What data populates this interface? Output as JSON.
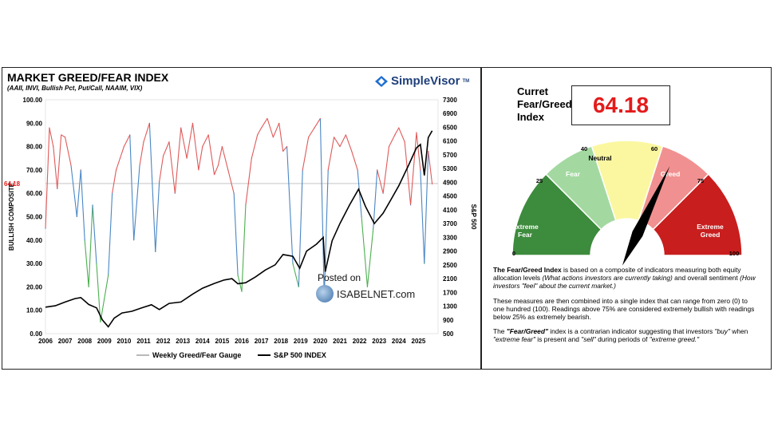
{
  "left": {
    "title": "MARKET GREED/FEAR INDEX",
    "subtitle": "(AAII, INVI, Bullish Pct, Put/Call, NAAIM, VIX)",
    "brand": "SimpleVisor",
    "brand_tm": "TM",
    "watermark_top": "Posted on",
    "watermark_bottom": "ISABELNET.com",
    "legend_gauge": "Weekly Greed/Fear Gauge",
    "legend_sp": "S&P 500 INDEX"
  },
  "right": {
    "current_label": [
      "Curret",
      "Fear/Greed",
      "Index"
    ],
    "current_value": "64.18",
    "desc_p1_bold": "The Fear/Greed Index",
    "desc_p1_rest": " is based on a composite of indicators measuring both equity allocation levels ",
    "desc_p1_italic1": "(What actions investors are currently taking)",
    "desc_p1_mid": " and overall sentiment ",
    "desc_p1_italic2": "(How investors \"feel\" about the current market.)",
    "desc_p2": "These measures are then combined into a single index that can range from zero (0) to one hundred (100). Readings above 75% are considered extremely bullish with readings below 25% as extremely bearish.",
    "desc_p3_a": "The ",
    "desc_p3_b": "\"Fear/Greed\"",
    "desc_p3_c": " index is a contrarian indicator suggesting that investors ",
    "desc_p3_d": "\"buy\"",
    "desc_p3_e": " when ",
    "desc_p3_f": "\"extreme fear\"",
    "desc_p3_g": " is present and ",
    "desc_p3_h": "\"sell\"",
    "desc_p3_i": " during periods of ",
    "desc_p3_j": "\"extreme greed.\""
  },
  "colors": {
    "greed": "#e05a5a",
    "neutral_line": "#4a86c4",
    "fear": "#4caf50",
    "sp500": "#000000",
    "current_value": "#e31b1b"
  },
  "chart_data": [
    {
      "type": "line",
      "title": "MARKET GREED/FEAR INDEX",
      "ylabel": "BULLISH COMPOSITE",
      "y2label": "S&P 500",
      "ylim": [
        0,
        100
      ],
      "y2lim": [
        500,
        7300
      ],
      "yticks": [
        "0.00",
        "10.00",
        "20.00",
        "30.00",
        "40.00",
        "50.00",
        "60.00",
        "70.00",
        "80.00",
        "90.00",
        "100.00"
      ],
      "y2ticks": [
        "500",
        "900",
        "1300",
        "1700",
        "2100",
        "2500",
        "2900",
        "3300",
        "3700",
        "4100",
        "4500",
        "4900",
        "5300",
        "5700",
        "6100",
        "6500",
        "6900",
        "7300"
      ],
      "xticks": [
        "2006",
        "2007",
        "2008",
        "2009",
        "2010",
        "2011",
        "2012",
        "2013",
        "2014",
        "2015",
        "2016",
        "2017",
        "2018",
        "2019",
        "2020",
        "2021",
        "2022",
        "2023",
        "2024",
        "2025"
      ],
      "current_marker": {
        "label": "64.18",
        "value": 64.18
      },
      "series": [
        {
          "name": "Weekly Greed/Fear Gauge",
          "x": [
            2006.0,
            2006.2,
            2006.4,
            2006.6,
            2006.8,
            2007.0,
            2007.3,
            2007.6,
            2007.8,
            2008.0,
            2008.2,
            2008.4,
            2008.6,
            2008.8,
            2009.0,
            2009.2,
            2009.4,
            2009.6,
            2009.8,
            2010.0,
            2010.3,
            2010.5,
            2010.8,
            2011.0,
            2011.3,
            2011.6,
            2011.8,
            2012.0,
            2012.3,
            2012.6,
            2012.9,
            2013.2,
            2013.5,
            2013.8,
            2014.0,
            2014.3,
            2014.6,
            2014.8,
            2015.0,
            2015.3,
            2015.6,
            2015.8,
            2016.0,
            2016.2,
            2016.5,
            2016.8,
            2017.0,
            2017.3,
            2017.6,
            2017.9,
            2018.1,
            2018.3,
            2018.6,
            2018.9,
            2019.1,
            2019.4,
            2019.7,
            2020.0,
            2020.2,
            2020.4,
            2020.7,
            2021.0,
            2021.3,
            2021.6,
            2021.9,
            2022.1,
            2022.4,
            2022.7,
            2022.9,
            2023.2,
            2023.5,
            2023.8,
            2024.0,
            2024.3,
            2024.6,
            2024.9,
            2025.1,
            2025.3,
            2025.5,
            2025.7
          ],
          "values": [
            45,
            88,
            80,
            62,
            85,
            84,
            72,
            50,
            70,
            40,
            20,
            55,
            30,
            5,
            15,
            25,
            60,
            70,
            75,
            80,
            85,
            40,
            72,
            82,
            90,
            35,
            65,
            76,
            82,
            60,
            88,
            75,
            90,
            70,
            80,
            85,
            68,
            72,
            80,
            70,
            60,
            25,
            18,
            55,
            75,
            85,
            88,
            92,
            84,
            90,
            78,
            80,
            30,
            20,
            70,
            84,
            88,
            92,
            15,
            70,
            84,
            80,
            85,
            78,
            70,
            50,
            20,
            45,
            70,
            60,
            80,
            85,
            88,
            82,
            55,
            86,
            70,
            30,
            78,
            64
          ]
        },
        {
          "name": "S&P 500 INDEX",
          "x": [
            2006.0,
            2006.5,
            2007.0,
            2007.5,
            2007.8,
            2008.2,
            2008.6,
            2008.9,
            2009.2,
            2009.5,
            2009.9,
            2010.4,
            2010.9,
            2011.4,
            2011.8,
            2012.3,
            2012.9,
            2013.5,
            2014.0,
            2014.6,
            2015.1,
            2015.5,
            2015.8,
            2016.2,
            2016.7,
            2017.2,
            2017.7,
            2018.1,
            2018.6,
            2018.95,
            2019.3,
            2019.8,
            2020.15,
            2020.25,
            2020.6,
            2021.0,
            2021.5,
            2021.95,
            2022.3,
            2022.75,
            2023.2,
            2023.6,
            2024.0,
            2024.5,
            2024.9,
            2025.1,
            2025.3,
            2025.5,
            2025.7
          ],
          "values": [
            1270,
            1310,
            1420,
            1520,
            1550,
            1350,
            1250,
            900,
            700,
            950,
            1100,
            1150,
            1250,
            1340,
            1200,
            1380,
            1420,
            1650,
            1820,
            1960,
            2060,
            2100,
            1950,
            1980,
            2150,
            2350,
            2500,
            2800,
            2750,
            2400,
            2900,
            3100,
            3300,
            2300,
            3200,
            3700,
            4250,
            4700,
            4200,
            3700,
            4000,
            4400,
            4800,
            5400,
            5900,
            6000,
            5100,
            6200,
            6400
          ]
        }
      ]
    },
    {
      "type": "gauge",
      "title": "Curret Fear/Greed Index",
      "range": [
        0,
        100
      ],
      "value": 64.18,
      "bands": [
        {
          "label": "Extreme Fear",
          "from": 0,
          "to": 25,
          "color": "#3d8b3d"
        },
        {
          "label": "Fear",
          "from": 25,
          "to": 40,
          "color": "#a3d9a0"
        },
        {
          "label": "Neutral",
          "from": 40,
          "to": 60,
          "color": "#fbf7a0"
        },
        {
          "label": "Greed",
          "from": 60,
          "to": 75,
          "color": "#f19090"
        },
        {
          "label": "Extreme Greed",
          "from": 75,
          "to": 100,
          "color": "#c81e1e"
        }
      ],
      "tick_labels": [
        "0",
        "25",
        "40",
        "60",
        "75",
        "100"
      ]
    }
  ]
}
